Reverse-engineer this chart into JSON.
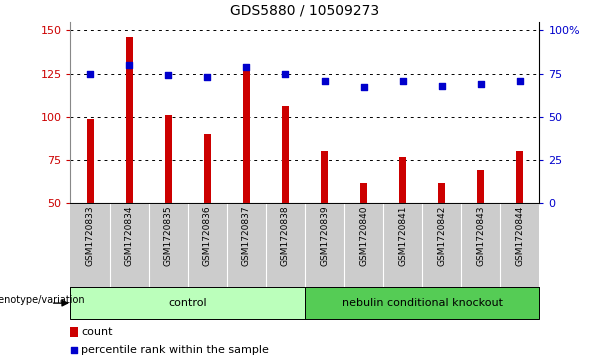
{
  "title": "GDS5880 / 10509273",
  "samples": [
    "GSM1720833",
    "GSM1720834",
    "GSM1720835",
    "GSM1720836",
    "GSM1720837",
    "GSM1720838",
    "GSM1720839",
    "GSM1720840",
    "GSM1720841",
    "GSM1720842",
    "GSM1720843",
    "GSM1720844"
  ],
  "counts": [
    99,
    146,
    101,
    90,
    127,
    106,
    80,
    62,
    77,
    62,
    69,
    80
  ],
  "percentiles": [
    75,
    80,
    74,
    73,
    79,
    75,
    71,
    67,
    71,
    68,
    69,
    71
  ],
  "ylim_left": [
    50,
    155
  ],
  "ylim_right": [
    0,
    105
  ],
  "yticks_left": [
    50,
    75,
    100,
    125,
    150
  ],
  "yticks_right": [
    0,
    25,
    50,
    75,
    100
  ],
  "yticklabels_right": [
    "0",
    "25",
    "50",
    "75",
    "100%"
  ],
  "bar_color": "#cc0000",
  "dot_color": "#0000cc",
  "bar_bottom": 50,
  "control_samples": 6,
  "control_label": "control",
  "knockout_label": "nebulin conditional knockout",
  "control_color": "#bbffbb",
  "knockout_color": "#55cc55",
  "group_row_bg": "#cccccc",
  "genotype_label": "genotype/variation",
  "legend_count": "count",
  "legend_percentile": "percentile rank within the sample",
  "grid_color": "#000000",
  "plot_bg": "#ffffff",
  "tick_label_color_left": "#cc0000",
  "tick_label_color_right": "#0000cc"
}
